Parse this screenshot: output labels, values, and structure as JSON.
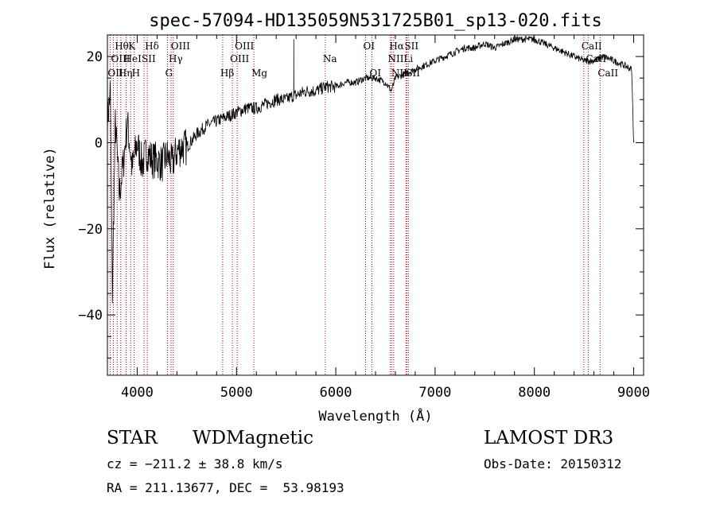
{
  "chart_data": {
    "type": "line",
    "title": "spec-57094-HD135059N531725B01_sp13-020.fits",
    "xlabel": "Wavelength (Å)",
    "ylabel": "Flux (relative)",
    "xlim": [
      3700,
      9100
    ],
    "ylim": [
      -54,
      25
    ],
    "xticks": [
      4000,
      5000,
      6000,
      7000,
      8000,
      9000
    ],
    "xtick_labels": [
      "4000",
      "5000",
      "6000",
      "7000",
      "8000",
      "9000"
    ],
    "yticks": [
      -40,
      -20,
      0,
      20
    ],
    "ytick_labels": [
      "−40",
      "−20",
      "0",
      "20"
    ],
    "series": [
      {
        "name": "flux",
        "x": [
          3700,
          3730,
          3750,
          3780,
          3820,
          3860,
          3900,
          3950,
          4000,
          4050,
          4100,
          4150,
          4200,
          4250,
          4300,
          4350,
          4400,
          4450,
          4500,
          4600,
          4700,
          4800,
          4900,
          5000,
          5100,
          5200,
          5300,
          5400,
          5500,
          5580,
          5600,
          5700,
          5800,
          5900,
          6000,
          6100,
          6200,
          6300,
          6400,
          6500,
          6560,
          6600,
          6700,
          6800,
          6900,
          7000,
          7100,
          7200,
          7300,
          7400,
          7500,
          7600,
          7700,
          7800,
          7900,
          8000,
          8100,
          8200,
          8300,
          8400,
          8500,
          8600,
          8700,
          8800,
          8900,
          8980,
          9000
        ],
        "y": [
          5,
          12,
          -35,
          5,
          -12,
          -5,
          5,
          -6,
          0,
          -5,
          -2,
          -4,
          -4,
          -5,
          -3,
          -5,
          -2,
          -1,
          -1,
          2,
          4,
          5,
          6,
          7,
          8,
          8,
          9,
          10,
          10,
          11,
          11,
          12,
          12,
          13,
          13,
          14,
          14,
          15,
          15,
          14,
          12,
          15,
          16,
          17,
          18,
          19,
          20,
          21,
          22,
          22,
          23,
          22,
          23,
          24,
          24,
          24,
          23,
          22,
          21,
          20,
          19,
          19,
          20,
          19,
          18,
          17,
          0
        ]
      }
    ],
    "spikes": [
      {
        "x": 5577,
        "y": 24
      }
    ],
    "lines": [
      {
        "label": "Hθ",
        "x": 3798,
        "row": 1
      },
      {
        "label": "OII",
        "x": 3727,
        "row": 3
      },
      {
        "label": "Hη",
        "x": 3835,
        "row": 3
      },
      {
        "label": "OIII",
        "x": 3760,
        "row": 2
      },
      {
        "label": "HeI",
        "x": 3889,
        "row": 2
      },
      {
        "label": "K",
        "x": 3934,
        "row": 1
      },
      {
        "label": "H",
        "x": 3969,
        "row": 3
      },
      {
        "label": "SII",
        "x": 4069,
        "row": 2
      },
      {
        "label": "Hδ",
        "x": 4102,
        "row": 1
      },
      {
        "label": "Hγ",
        "x": 4341,
        "row": 2
      },
      {
        "label": "G",
        "x": 4305,
        "row": 3
      },
      {
        "label": "OIII",
        "x": 4363,
        "row": 1
      },
      {
        "label": "Hβ",
        "x": 4861,
        "row": 3
      },
      {
        "label": "OIII",
        "x": 4959,
        "row": 2
      },
      {
        "label": "OIII",
        "x": 5007,
        "row": 1
      },
      {
        "label": "Mg",
        "x": 5175,
        "row": 3
      },
      {
        "label": "Na",
        "x": 5894,
        "row": 2
      },
      {
        "label": "OI",
        "x": 6300,
        "row": 1
      },
      {
        "label": "OI",
        "x": 6364,
        "row": 3
      },
      {
        "label": "Hα",
        "x": 6563,
        "row": 1
      },
      {
        "label": "NII",
        "x": 6548,
        "row": 2
      },
      {
        "label": "NII",
        "x": 6583,
        "row": 3
      },
      {
        "label": "SII",
        "x": 6716,
        "row": 1
      },
      {
        "label": "Li",
        "x": 6707,
        "row": 2
      },
      {
        "label": "SII",
        "x": 6731,
        "row": 3
      },
      {
        "label": "CaII",
        "x": 8498,
        "row": 1
      },
      {
        "label": "CaII",
        "x": 8542,
        "row": 2
      },
      {
        "label": "CaII",
        "x": 8662,
        "row": 3
      }
    ]
  },
  "info": {
    "class": "STAR",
    "subclass": "WDMagnetic",
    "survey": "LAMOST DR3",
    "cz": "cz = −211.2 ± 38.8 km/s",
    "obs_date": "Obs-Date: 20150312",
    "coords": "RA = 211.13677, DEC =  53.98193"
  }
}
